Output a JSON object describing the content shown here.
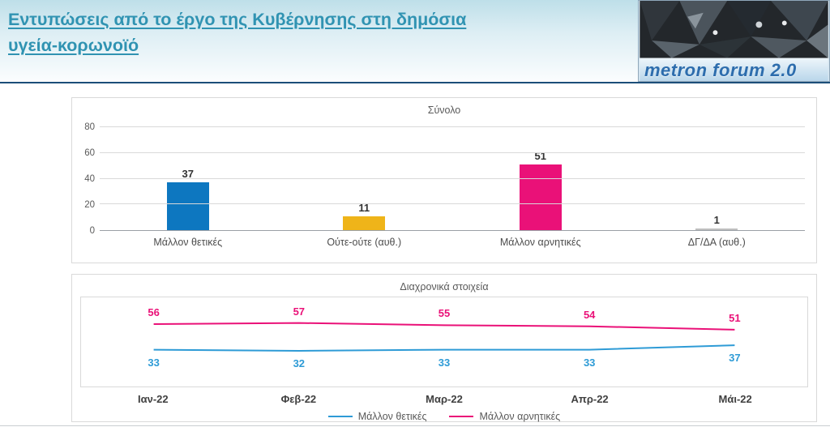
{
  "header": {
    "title_line1": "Εντυπώσεις από το έργο της Κυβέρνησης στη δημόσια",
    "title_line2": "υγεία-κορωνοϊό",
    "title_color": "#3093b2",
    "rule_color": "#1c4e79",
    "logo_text": "metron forum 2.0"
  },
  "chart_data": [
    {
      "type": "bar",
      "title": "Σύνολο",
      "categories": [
        "Μάλλον θετικές",
        "Ούτε-ούτε (αυθ.)",
        "Μάλλον αρνητικές",
        "ΔΓ/ΔΑ (αυθ.)"
      ],
      "values": [
        37,
        11,
        51,
        1
      ],
      "colors": [
        "#0d77c0",
        "#efb419",
        "#ea1178",
        "#bfbfbf"
      ],
      "xlabel": "",
      "ylabel": "",
      "ylim": [
        0,
        80
      ],
      "yticks": [
        0,
        20,
        40,
        60,
        80
      ],
      "grid": true,
      "legend_position": "none"
    },
    {
      "type": "line",
      "title": "Διαχρονικά στοιχεία",
      "categories": [
        "Ιαν-22",
        "Φεβ-22",
        "Μαρ-22",
        "Απρ-22",
        "Μάι-22"
      ],
      "series": [
        {
          "name": "Μάλλον θετικές",
          "color": "#2e9bd6",
          "values": [
            33,
            32,
            33,
            33,
            37
          ],
          "label_position": "below"
        },
        {
          "name": "Μάλλον αρνητικές",
          "color": "#ea1178",
          "values": [
            56,
            57,
            55,
            54,
            51
          ],
          "label_position": "above"
        }
      ],
      "xlabel": "",
      "ylabel": "",
      "ylim": [
        0,
        80
      ],
      "grid": false,
      "legend_position": "bottom"
    }
  ]
}
